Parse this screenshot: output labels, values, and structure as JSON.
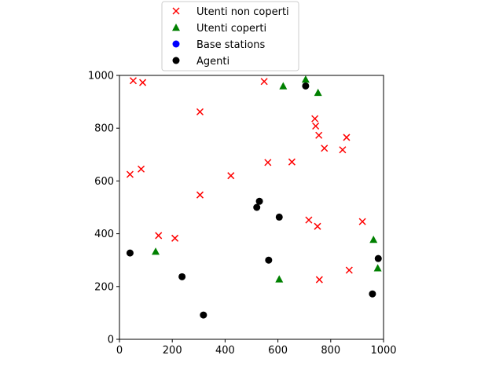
{
  "chart_data": {
    "type": "scatter",
    "xlim": [
      0,
      1000
    ],
    "ylim": [
      0,
      1000
    ],
    "xticks": [
      0,
      200,
      400,
      600,
      800,
      1000
    ],
    "yticks": [
      0,
      200,
      400,
      600,
      800,
      1000
    ],
    "grid": false,
    "legend_position": "top-center",
    "series": [
      {
        "name": "Utenti non coperti",
        "marker": "x",
        "color": "#ff0000",
        "points": [
          [
            52,
            980
          ],
          [
            88,
            973
          ],
          [
            305,
            862
          ],
          [
            548,
            977
          ],
          [
            40,
            625
          ],
          [
            82,
            645
          ],
          [
            305,
            547
          ],
          [
            422,
            620
          ],
          [
            562,
            670
          ],
          [
            653,
            672
          ],
          [
            740,
            836
          ],
          [
            743,
            808
          ],
          [
            755,
            773
          ],
          [
            776,
            724
          ],
          [
            845,
            718
          ],
          [
            860,
            765
          ],
          [
            148,
            393
          ],
          [
            210,
            383
          ],
          [
            717,
            452
          ],
          [
            750,
            428
          ],
          [
            920,
            446
          ],
          [
            757,
            226
          ],
          [
            870,
            262
          ]
        ]
      },
      {
        "name": "Utenti coperti",
        "marker": "triangle",
        "color": "#008000",
        "points": [
          [
            705,
            985
          ],
          [
            620,
            960
          ],
          [
            752,
            935
          ],
          [
            137,
            333
          ],
          [
            605,
            228
          ],
          [
            962,
            378
          ],
          [
            978,
            270
          ]
        ]
      },
      {
        "name": "Base stations",
        "marker": "circle",
        "color": "#0000ff",
        "points": []
      },
      {
        "name": "Agenti",
        "marker": "circle",
        "color": "#000000",
        "points": [
          [
            705,
            960
          ],
          [
            530,
            523
          ],
          [
            520,
            500
          ],
          [
            605,
            463
          ],
          [
            40,
            327
          ],
          [
            565,
            300
          ],
          [
            980,
            306
          ],
          [
            237,
            237
          ],
          [
            318,
            92
          ],
          [
            958,
            172
          ]
        ]
      }
    ]
  }
}
